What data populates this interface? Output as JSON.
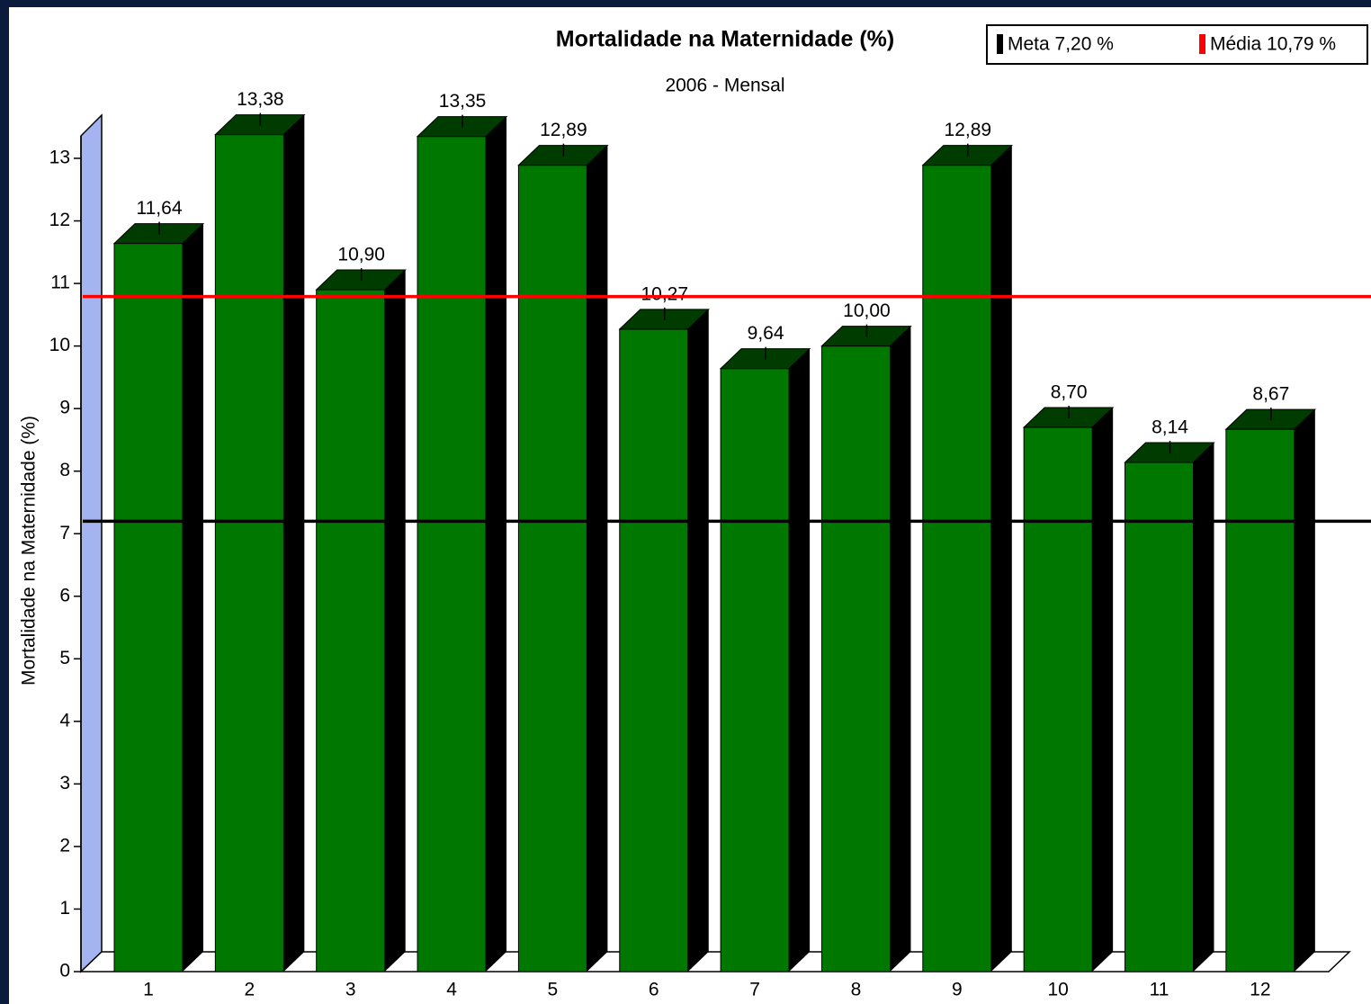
{
  "chart_data": {
    "type": "bar",
    "title": "Mortalidade na Maternidade (%)",
    "subtitle": "2006 - Mensal",
    "y_label": "Mortalidade na Maternidade (%)",
    "categories": [
      "1",
      "2",
      "3",
      "4",
      "5",
      "6",
      "7",
      "8",
      "9",
      "10",
      "11",
      "12"
    ],
    "values": [
      11.64,
      13.38,
      10.9,
      13.35,
      12.89,
      10.27,
      9.64,
      10.0,
      12.89,
      8.7,
      8.14,
      8.67
    ],
    "value_labels": [
      "11,64",
      "13,38",
      "10,90",
      "13,35",
      "12,89",
      "10,27",
      "9,64",
      "10,00",
      "12,89",
      "8,70",
      "8,14",
      "8,67"
    ],
    "color": "#007800",
    "ylim": [
      0,
      13
    ],
    "yticks": [
      0,
      1,
      2,
      3,
      4,
      5,
      6,
      7,
      8,
      9,
      10,
      11,
      12,
      13
    ],
    "reference_lines": [
      {
        "name": "Meta 7,20 %",
        "value": 7.2,
        "color": "#000000"
      },
      {
        "name": "Média 10,79 %",
        "value": 10.79,
        "color": "#ff0000"
      }
    ]
  }
}
